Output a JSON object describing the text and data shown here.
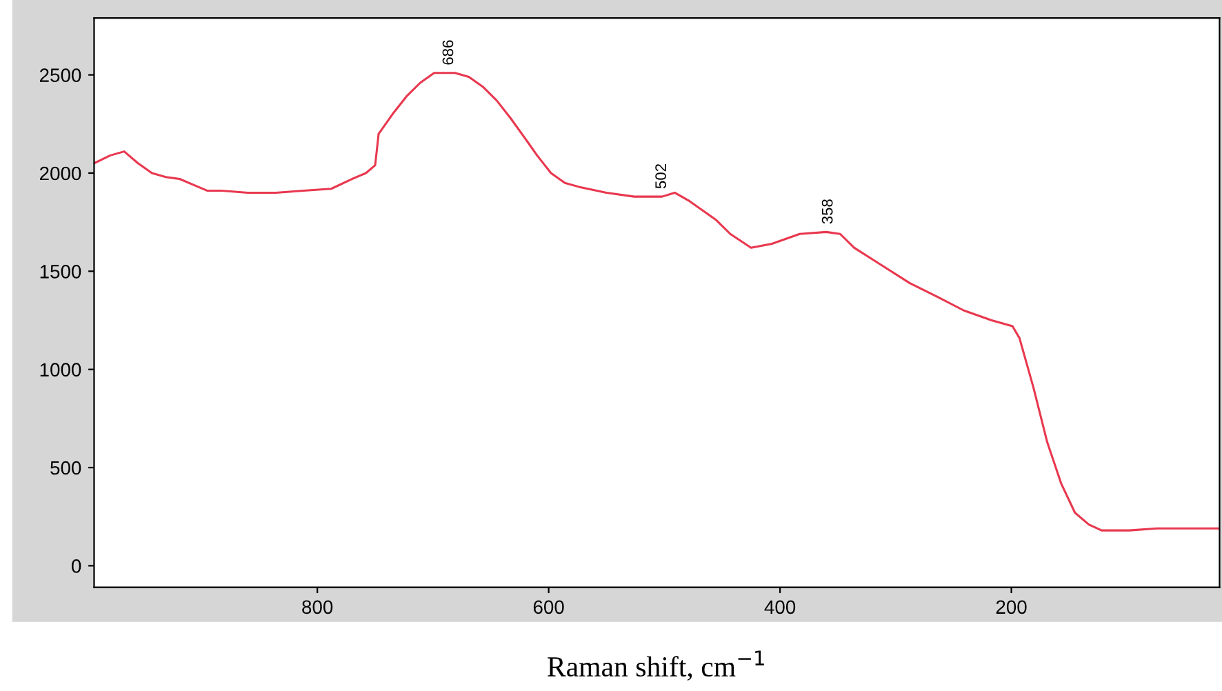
{
  "chart_data": {
    "type": "line",
    "xlabel": "Raman shift, cm$^{−1}$",
    "xlim": [
      993,
      20
    ],
    "xticks": [
      800,
      600,
      400,
      200
    ],
    "ylim": [
      -110,
      2790
    ],
    "yticks": [
      0,
      500,
      1000,
      1500,
      2000,
      2500
    ],
    "grid": false,
    "legend": false,
    "marker": "none",
    "line_style": "solid",
    "x": [
      993,
      979,
      967,
      955,
      943,
      931,
      919,
      907,
      895,
      883,
      860,
      836,
      812,
      788,
      770,
      758,
      750,
      747,
      735,
      723,
      711,
      699,
      686,
      681,
      669,
      657,
      645,
      633,
      622,
      610,
      598,
      586,
      574,
      550,
      526,
      502,
      491,
      479,
      467,
      455,
      443,
      425,
      407,
      383,
      360,
      348,
      336,
      312,
      288,
      264,
      241,
      217,
      199,
      193,
      181,
      169,
      157,
      145,
      133,
      122,
      98,
      74,
      50,
      21
    ],
    "series": [
      {
        "color": "#e8384f",
        "values": [
          2050,
          2090,
          2110,
          2050,
          2000,
          1980,
          1970,
          1940,
          1910,
          1910,
          1900,
          1900,
          1910,
          1920,
          1970,
          2000,
          2040,
          2200,
          2300,
          2390,
          2460,
          2510,
          2510,
          2510,
          2490,
          2440,
          2370,
          2280,
          2190,
          2090,
          2000,
          1950,
          1930,
          1900,
          1880,
          1880,
          1900,
          1860,
          1810,
          1760,
          1690,
          1620,
          1640,
          1690,
          1700,
          1690,
          1620,
          1530,
          1440,
          1370,
          1300,
          1250,
          1220,
          1160,
          910,
          630,
          420,
          270,
          210,
          180,
          180,
          190,
          190,
          190
        ]
      }
    ],
    "annotations": [
      {
        "text": "686",
        "x": 686,
        "y": 2510
      },
      {
        "text": "502",
        "x": 502,
        "y": 1880
      },
      {
        "text": "358",
        "x": 358,
        "y": 1700
      }
    ]
  }
}
